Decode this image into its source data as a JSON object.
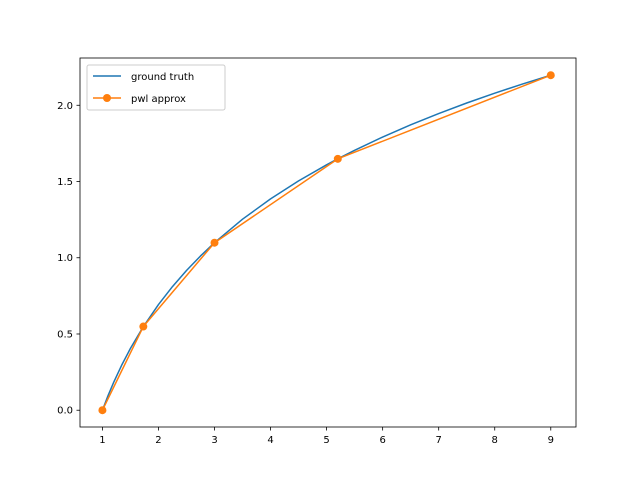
{
  "chart_data": {
    "type": "line",
    "title": "",
    "xlabel": "",
    "ylabel": "",
    "xlim": [
      0.6,
      9.45
    ],
    "ylim": [
      -0.11,
      2.31
    ],
    "xticks": [
      1,
      2,
      3,
      4,
      5,
      6,
      7,
      8,
      9
    ],
    "yticks": [
      0.0,
      0.5,
      1.0,
      1.5,
      2.0
    ],
    "grid": false,
    "legend_position": "top-left",
    "series": [
      {
        "name": "ground truth",
        "color": "#1f77b4",
        "marker": "none",
        "function": "ln(x)",
        "x": [
          1,
          1.1,
          1.2,
          1.35,
          1.5,
          1.73,
          2,
          2.25,
          2.5,
          2.75,
          3,
          3.5,
          4,
          4.5,
          5,
          5.2,
          5.5,
          6,
          6.5,
          7,
          7.5,
          8,
          8.5,
          9
        ],
        "y": [
          0,
          0.0953,
          0.1823,
          0.3001,
          0.4055,
          0.5481,
          0.6931,
          0.8109,
          0.9163,
          1.0116,
          1.0986,
          1.2528,
          1.3863,
          1.5041,
          1.6094,
          1.6487,
          1.7047,
          1.7918,
          1.8718,
          1.9459,
          2.0149,
          2.0794,
          2.1401,
          2.1972
        ]
      },
      {
        "name": "pwl approx",
        "color": "#ff7f0e",
        "marker": "circle",
        "x": [
          1,
          1.73,
          3,
          5.2,
          9
        ],
        "y": [
          0,
          0.549,
          1.0986,
          1.6487,
          2.1972
        ]
      }
    ]
  }
}
